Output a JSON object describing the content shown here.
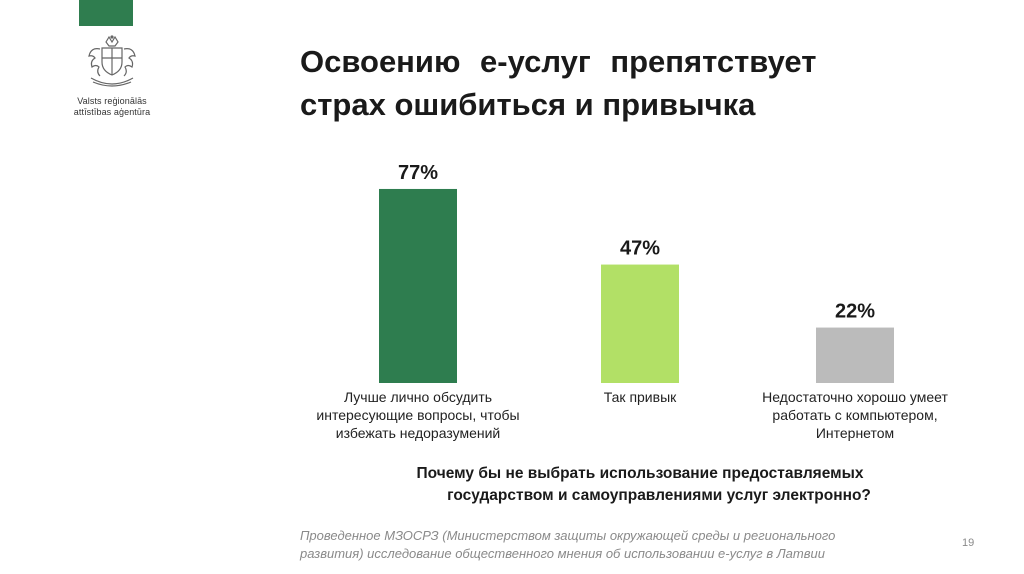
{
  "slide": {
    "title_line1": "Освоению  е-услуг  препятствует",
    "title_line2": "страх ошибиться и привычка",
    "question_line1": "Почему бы не выбрать использование предоставляемых",
    "question_line2": "государством и самоуправлениями услуг электронно?",
    "source_line1": "Проведенное МЗОСРЗ (Министерством защиты окружающей среды и регионального",
    "source_line2": "развития) исследование общественного мнения об использовании е-услуг в Латвии",
    "page_number": "19"
  },
  "logo": {
    "text_line1": "Valsts reģionālās",
    "text_line2": "attīstības aģentūra"
  },
  "colors": {
    "brand": "#2f7d4f",
    "bar1": "#2e7d4f",
    "bar2": "#b2e066",
    "bar3": "#bbbbbb"
  },
  "chart_data": {
    "type": "bar",
    "categories": [
      [
        "Лучше лично обсудить",
        "интересующие вопросы, чтобы",
        "избежать недоразумений"
      ],
      [
        "Так привык"
      ],
      [
        "Недостаточно хорошо умеет",
        "работать с компьютером,",
        "Интернетом"
      ]
    ],
    "values": [
      77,
      47,
      22
    ],
    "data_labels": [
      "77%",
      "47%",
      "22%"
    ],
    "bar_colors": [
      "#2e7d4f",
      "#b2e066",
      "#bbbbbb"
    ],
    "ylim": [
      0,
      100
    ],
    "grid": false,
    "legend": "none"
  }
}
